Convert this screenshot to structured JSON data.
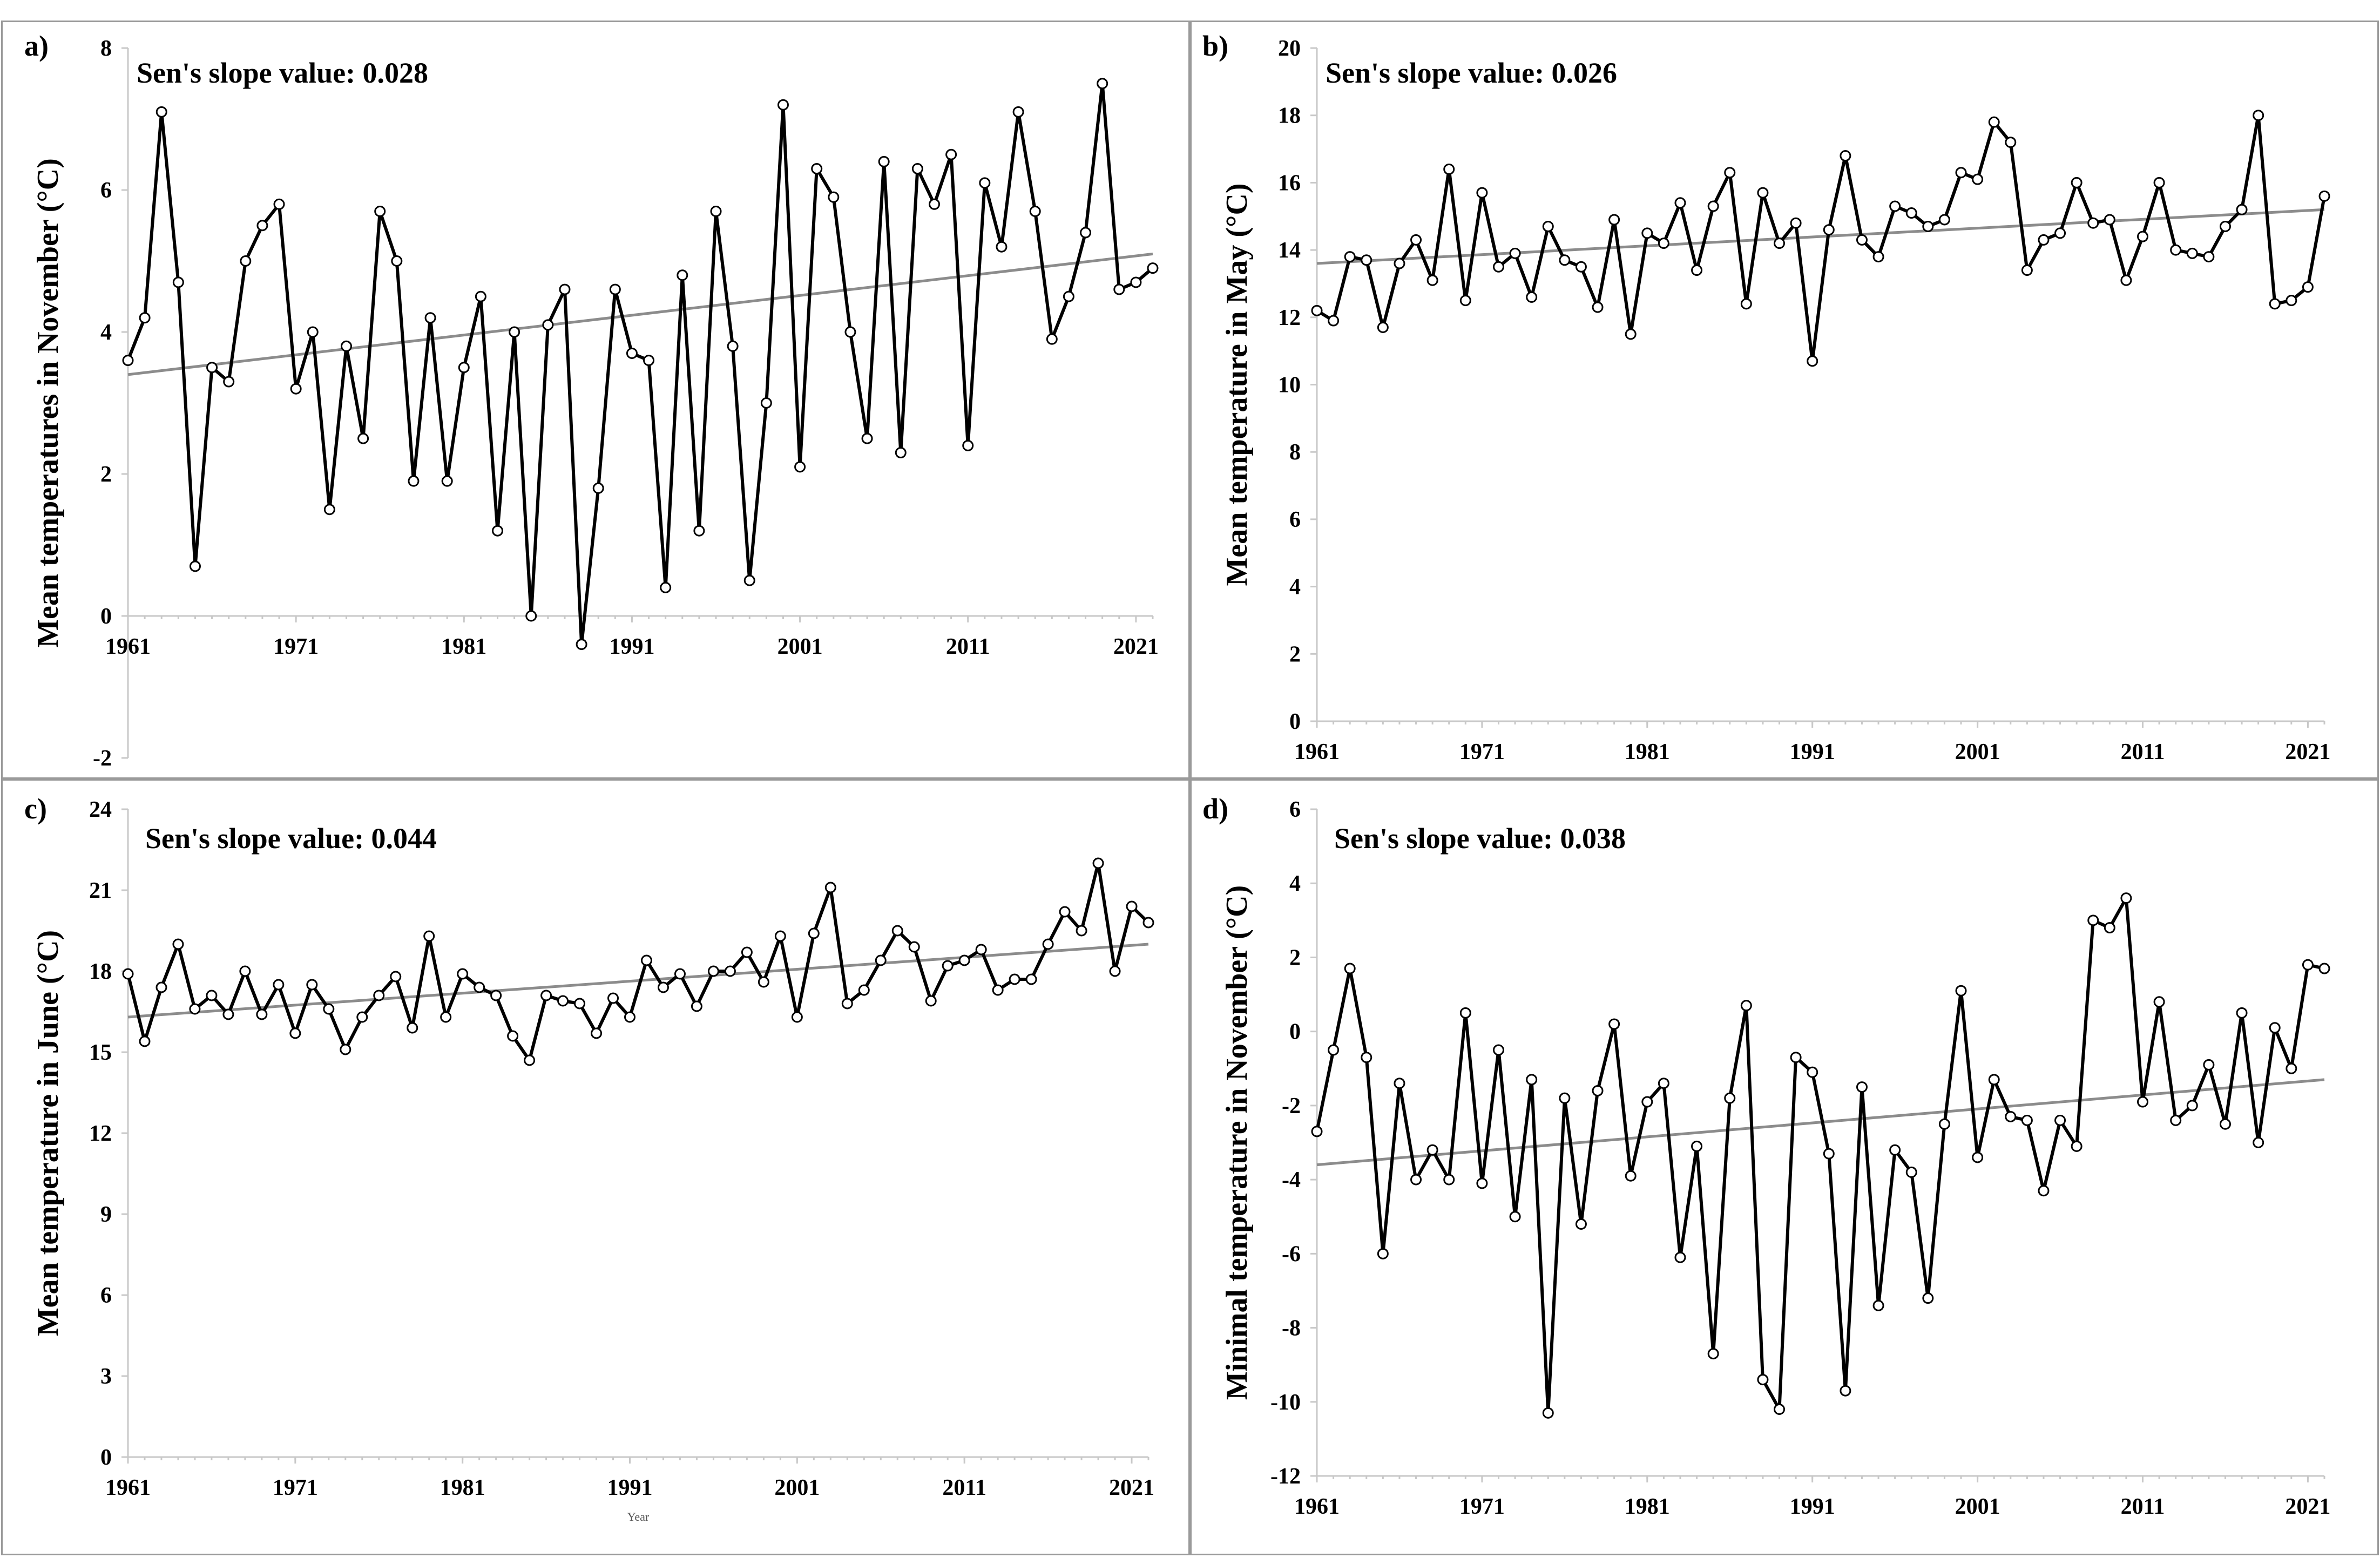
{
  "chart_data": [
    {
      "type": "line",
      "panel_label": "a)",
      "annotation": "Sen's slope value: 0.028",
      "ylabel": "Mean temperatures in November (°C)",
      "xlabel": "",
      "xlim": [
        1961,
        2022
      ],
      "ylim": [
        -2,
        8
      ],
      "yticks": [
        -2,
        0,
        2,
        4,
        6,
        8
      ],
      "xticks": [
        1961,
        1971,
        1981,
        1991,
        2001,
        2011,
        2021
      ],
      "x_tick_labels_at_zero": true,
      "trend": {
        "start": [
          1961,
          3.4
        ],
        "end": [
          2022,
          5.1
        ]
      },
      "series": [
        {
          "x": [
            1961,
            1962,
            1963,
            1964,
            1965,
            1966,
            1967,
            1968,
            1969,
            1970,
            1971,
            1972,
            1973,
            1974,
            1975,
            1976,
            1977,
            1978,
            1979,
            1980,
            1981,
            1982,
            1983,
            1984,
            1985,
            1986,
            1987,
            1988,
            1989,
            1990,
            1991,
            1992,
            1993,
            1994,
            1995,
            1996,
            1997,
            1998,
            1999,
            2000,
            2001,
            2002,
            2003,
            2004,
            2005,
            2006,
            2007,
            2008,
            2009,
            2010,
            2011,
            2012,
            2013,
            2014,
            2015,
            2016,
            2017,
            2018,
            2019,
            2020,
            2021,
            2022
          ],
          "values": [
            3.6,
            4.2,
            7.1,
            4.7,
            0.7,
            3.5,
            3.3,
            5.0,
            5.5,
            5.8,
            3.2,
            4.0,
            1.5,
            3.8,
            2.5,
            5.7,
            5.0,
            1.9,
            4.2,
            1.9,
            3.5,
            4.5,
            1.2,
            4.0,
            0.0,
            4.1,
            4.6,
            -0.4,
            1.8,
            4.6,
            3.7,
            3.6,
            0.4,
            4.8,
            1.2,
            5.7,
            3.8,
            0.5,
            3.0,
            7.2,
            2.1,
            6.3,
            5.9,
            4.0,
            2.5,
            6.4,
            2.3,
            6.3,
            5.8,
            6.5,
            2.4,
            6.1,
            5.2,
            7.1,
            5.7,
            3.9,
            4.5,
            5.4,
            7.5,
            4.6,
            4.7,
            4.9
          ]
        }
      ]
    },
    {
      "type": "line",
      "panel_label": "b)",
      "annotation": "Sen's slope value: 0.026",
      "ylabel": "Mean temperature in May (°C)",
      "xlabel": "",
      "xlim": [
        1961,
        2022
      ],
      "ylim": [
        0,
        20
      ],
      "yticks": [
        0,
        2,
        4,
        6,
        8,
        10,
        12,
        14,
        16,
        18,
        20
      ],
      "xticks": [
        1961,
        1971,
        1981,
        1991,
        2001,
        2011,
        2021
      ],
      "trend": {
        "start": [
          1961,
          13.6
        ],
        "end": [
          2022,
          15.2
        ]
      },
      "series": [
        {
          "x": [
            1961,
            1962,
            1963,
            1964,
            1965,
            1966,
            1967,
            1968,
            1969,
            1970,
            1971,
            1972,
            1973,
            1974,
            1975,
            1976,
            1977,
            1978,
            1979,
            1980,
            1981,
            1982,
            1983,
            1984,
            1985,
            1986,
            1987,
            1988,
            1989,
            1990,
            1991,
            1992,
            1993,
            1994,
            1995,
            1996,
            1997,
            1998,
            1999,
            2000,
            2001,
            2002,
            2003,
            2004,
            2005,
            2006,
            2007,
            2008,
            2009,
            2010,
            2011,
            2012,
            2013,
            2014,
            2015,
            2016,
            2017,
            2018,
            2019,
            2020,
            2021,
            2022
          ],
          "values": [
            12.2,
            11.9,
            13.8,
            13.7,
            11.7,
            13.6,
            14.3,
            13.1,
            16.4,
            12.5,
            15.7,
            13.5,
            13.9,
            12.6,
            14.7,
            13.7,
            13.5,
            12.3,
            14.9,
            11.5,
            14.5,
            14.2,
            15.4,
            13.4,
            15.3,
            16.3,
            12.4,
            15.7,
            14.2,
            14.8,
            10.7,
            14.6,
            16.8,
            14.3,
            13.8,
            15.3,
            15.1,
            14.7,
            14.9,
            16.3,
            16.1,
            17.8,
            17.2,
            13.4,
            14.3,
            14.5,
            16.0,
            14.8,
            14.9,
            13.1,
            14.4,
            16.0,
            14.0,
            13.9,
            13.8,
            14.7,
            15.2,
            18.0,
            12.4,
            12.5,
            12.9,
            15.6
          ]
        }
      ]
    },
    {
      "type": "line",
      "panel_label": "c)",
      "annotation": "Sen's slope value: 0.044",
      "ylabel": "Mean temperature in June (°C)",
      "xlabel": "Year",
      "xlim": [
        1961,
        2022
      ],
      "ylim": [
        0,
        24
      ],
      "yticks": [
        0,
        3,
        6,
        9,
        12,
        15,
        18,
        21,
        24
      ],
      "xticks": [
        1961,
        1971,
        1981,
        1991,
        2001,
        2011,
        2021
      ],
      "trend": {
        "start": [
          1961,
          16.3
        ],
        "end": [
          2022,
          19.0
        ]
      },
      "series": [
        {
          "x": [
            1961,
            1962,
            1963,
            1964,
            1965,
            1966,
            1967,
            1968,
            1969,
            1970,
            1971,
            1972,
            1973,
            1974,
            1975,
            1976,
            1977,
            1978,
            1979,
            1980,
            1981,
            1982,
            1983,
            1984,
            1985,
            1986,
            1987,
            1988,
            1989,
            1990,
            1991,
            1992,
            1993,
            1994,
            1995,
            1996,
            1997,
            1998,
            1999,
            2000,
            2001,
            2002,
            2003,
            2004,
            2005,
            2006,
            2007,
            2008,
            2009,
            2010,
            2011,
            2012,
            2013,
            2014,
            2015,
            2016,
            2017,
            2018,
            2019,
            2020,
            2021,
            2022
          ],
          "values": [
            17.9,
            15.4,
            17.4,
            19.0,
            16.6,
            17.1,
            16.4,
            18.0,
            16.4,
            17.5,
            15.7,
            17.5,
            16.6,
            15.1,
            16.3,
            17.1,
            17.8,
            15.9,
            19.3,
            16.3,
            17.9,
            17.4,
            17.1,
            15.6,
            14.7,
            17.1,
            16.9,
            16.8,
            15.7,
            17.0,
            16.3,
            18.4,
            17.4,
            17.9,
            16.7,
            18.0,
            18.0,
            18.7,
            17.6,
            19.3,
            16.3,
            19.4,
            21.1,
            16.8,
            17.3,
            18.4,
            19.5,
            18.9,
            16.9,
            18.2,
            18.4,
            18.8,
            17.3,
            17.7,
            17.7,
            19.0,
            20.2,
            19.5,
            22.0,
            18.0,
            20.4,
            19.8
          ]
        }
      ]
    },
    {
      "type": "line",
      "panel_label": "d)",
      "annotation": "Sen's slope value: 0.038",
      "ylabel": "Minimal temperature in November (°C)",
      "xlabel": "",
      "xlim": [
        1961,
        2022
      ],
      "ylim": [
        -12,
        6
      ],
      "yticks": [
        -12,
        -10,
        -8,
        -6,
        -4,
        -2,
        0,
        2,
        4,
        6
      ],
      "xticks": [
        1961,
        1971,
        1981,
        1991,
        2001,
        2011,
        2021
      ],
      "trend": {
        "start": [
          1961,
          -3.6
        ],
        "end": [
          2022,
          -1.3
        ]
      },
      "series": [
        {
          "x": [
            1961,
            1962,
            1963,
            1964,
            1965,
            1966,
            1967,
            1968,
            1969,
            1970,
            1971,
            1972,
            1973,
            1974,
            1975,
            1976,
            1977,
            1978,
            1979,
            1980,
            1981,
            1982,
            1983,
            1984,
            1985,
            1986,
            1987,
            1988,
            1989,
            1990,
            1991,
            1992,
            1993,
            1994,
            1995,
            1996,
            1997,
            1998,
            1999,
            2000,
            2001,
            2002,
            2003,
            2004,
            2005,
            2006,
            2007,
            2008,
            2009,
            2010,
            2011,
            2012,
            2013,
            2014,
            2015,
            2016,
            2017,
            2018,
            2019,
            2020,
            2021,
            2022
          ],
          "values": [
            -2.7,
            -0.5,
            1.7,
            -0.7,
            -6.0,
            -1.4,
            -4.0,
            -3.2,
            -4.0,
            0.5,
            -4.1,
            -0.5,
            -5.0,
            -1.3,
            -10.3,
            -1.8,
            -5.2,
            -1.6,
            0.2,
            -3.9,
            -1.9,
            -1.4,
            -6.1,
            -3.1,
            -8.7,
            -1.8,
            0.7,
            -9.4,
            -10.2,
            -0.7,
            -1.1,
            -3.3,
            -9.7,
            -1.5,
            -7.4,
            -3.2,
            -3.8,
            -7.2,
            -2.5,
            1.1,
            -3.4,
            -1.3,
            -2.3,
            -2.4,
            -4.3,
            -2.4,
            -3.1,
            3.0,
            2.8,
            3.6,
            -1.9,
            0.8,
            -2.4,
            -2.0,
            -0.9,
            -2.5,
            0.5,
            -3.0,
            0.1,
            -1.0,
            1.8,
            1.7
          ]
        }
      ]
    }
  ]
}
